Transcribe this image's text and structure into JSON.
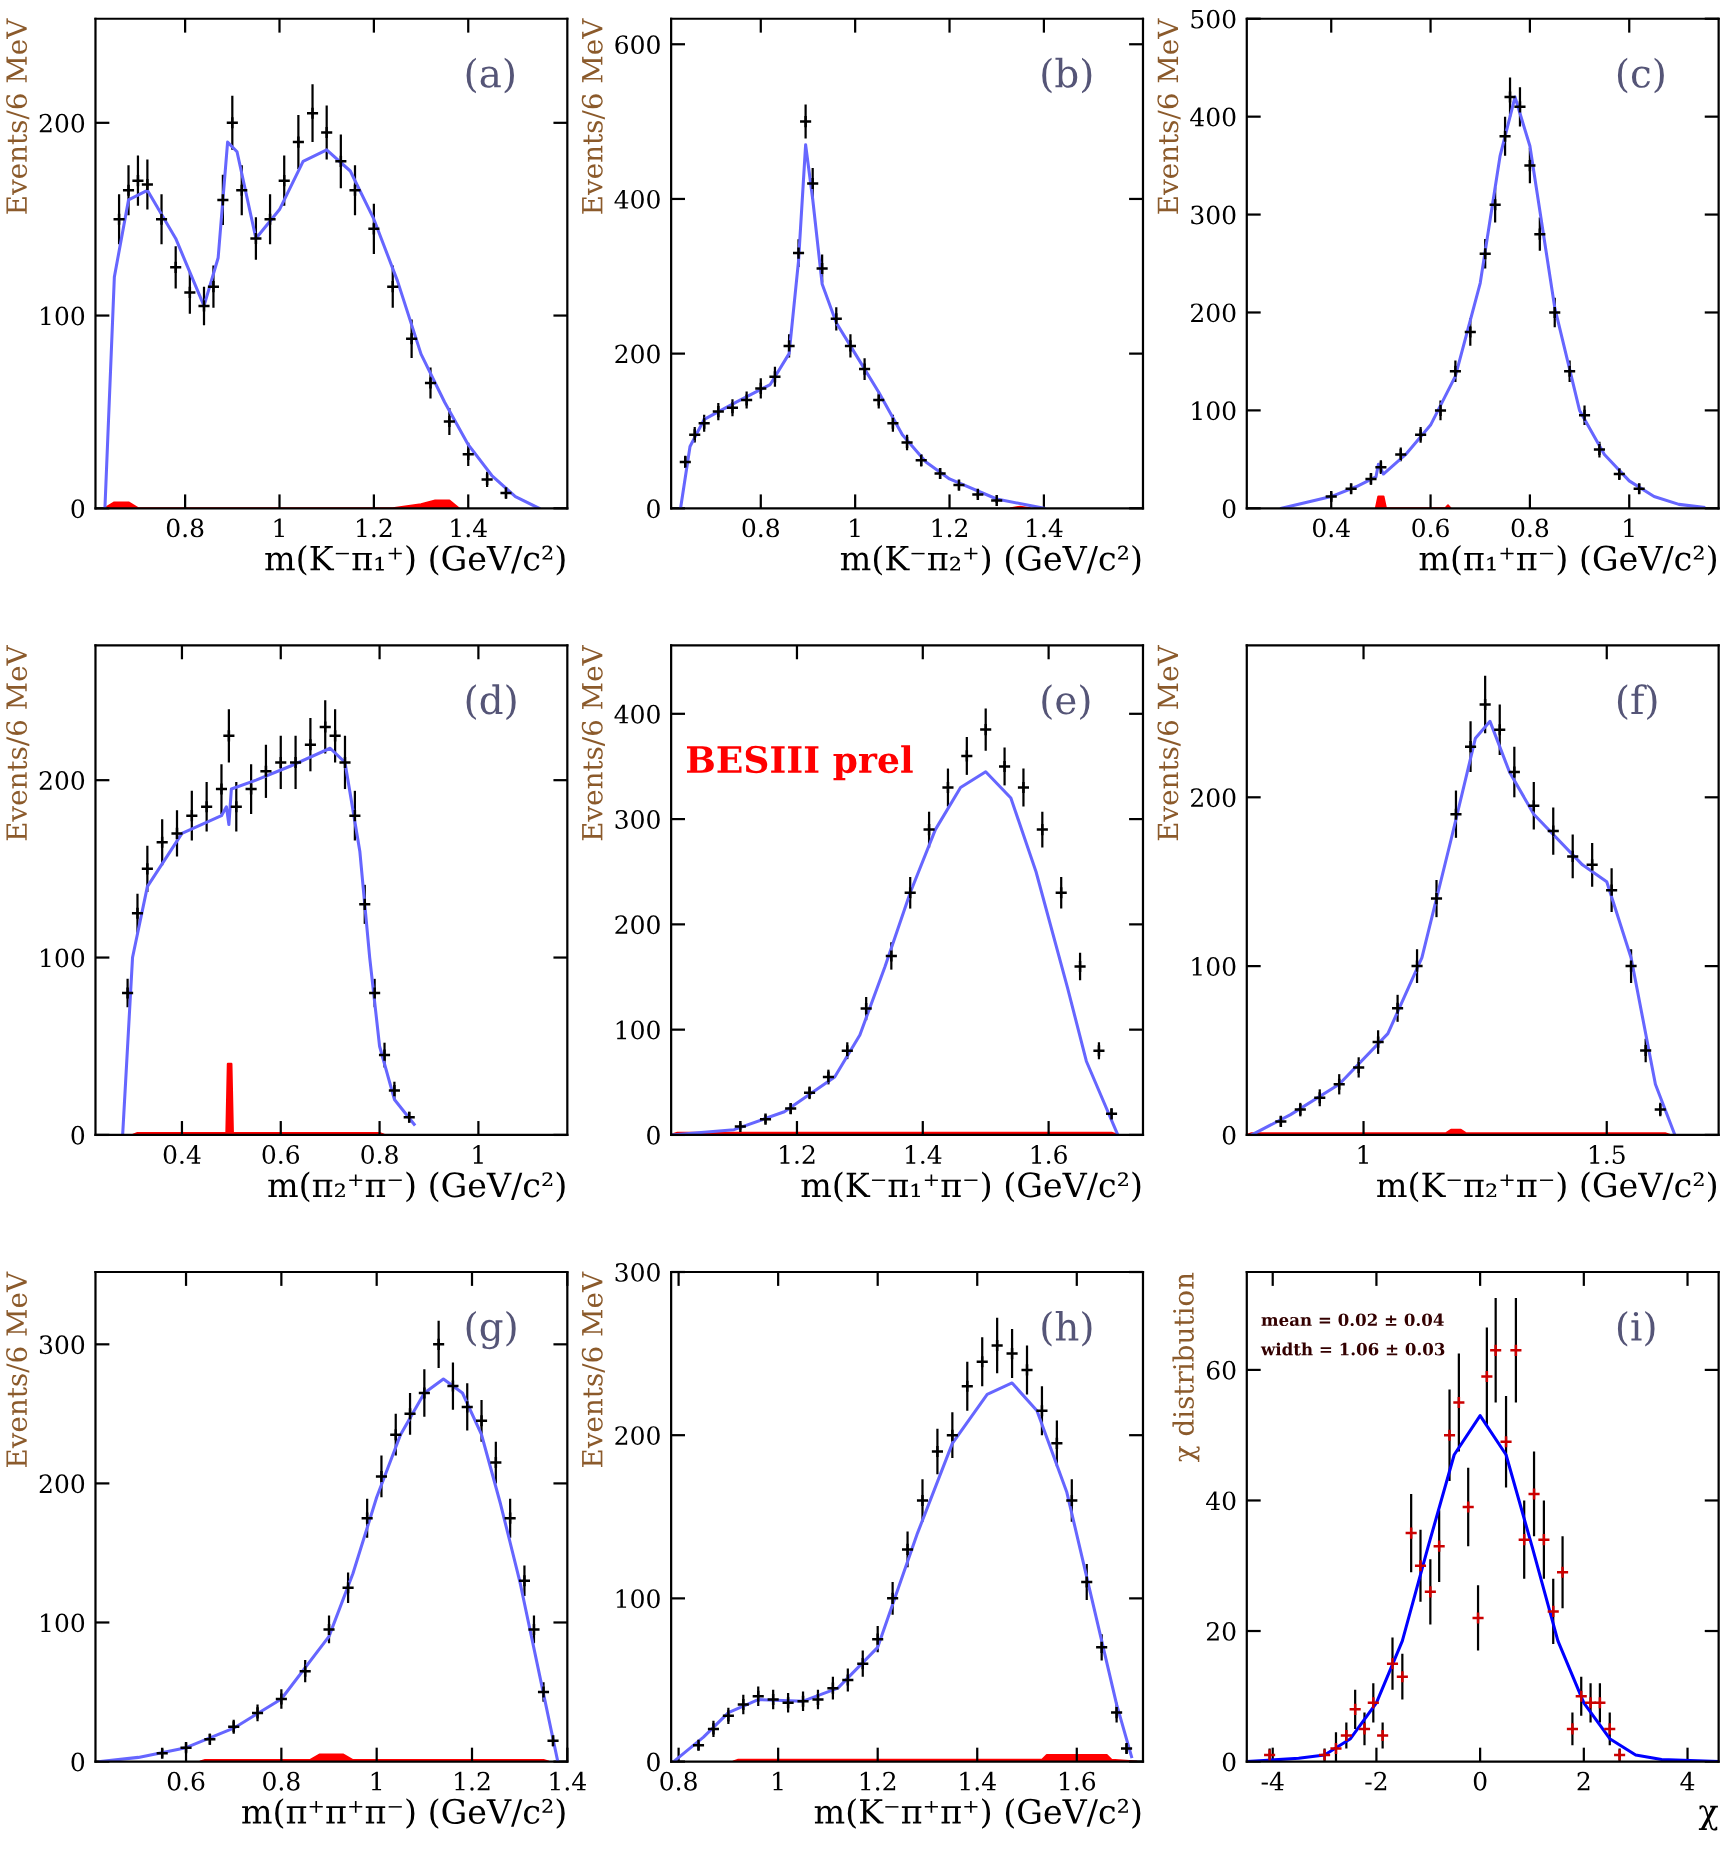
{
  "chart_data": [
    {
      "type": "scatter",
      "xlabel": "m(K⁻π₁⁺) (GeV/c²)",
      "ylabel": "Events/6 MeV",
      "xlim": [
        0.61,
        1.61
      ],
      "xticks": [
        0.8,
        1,
        1.2,
        1.4
      ],
      "ylim": [
        0,
        254
      ],
      "yticks": [
        0,
        100,
        200
      ],
      "annotations": [
        "(a)"
      ],
      "series": [
        {
          "type": "area",
          "color": "#ff0000",
          "x": [
            0.63,
            0.65,
            0.68,
            0.7,
            1.24,
            1.3,
            1.33,
            1.36,
            1.38
          ],
          "values": [
            0,
            3,
            3,
            0,
            0,
            2,
            4,
            4,
            0
          ]
        },
        {
          "color": "#000000",
          "marker": "cross",
          "x": [
            0.66,
            0.68,
            0.7,
            0.72,
            0.75,
            0.78,
            0.81,
            0.84,
            0.86,
            0.88,
            0.9,
            0.92,
            0.95,
            0.98,
            1.01,
            1.04,
            1.07,
            1.1,
            1.13,
            1.16,
            1.2,
            1.24,
            1.28,
            1.32,
            1.36,
            1.4,
            1.44,
            1.48
          ],
          "values": [
            150,
            165,
            170,
            168,
            150,
            125,
            112,
            105,
            115,
            160,
            200,
            165,
            140,
            150,
            170,
            190,
            205,
            195,
            180,
            165,
            145,
            115,
            88,
            65,
            45,
            28,
            15,
            8
          ],
          "errors": [
            13,
            13,
            13,
            13,
            13,
            11,
            11,
            10,
            11,
            13,
            14,
            13,
            11,
            13,
            13,
            14,
            15,
            14,
            14,
            13,
            13,
            11,
            10,
            8,
            7,
            6,
            4,
            3
          ]
        },
        {
          "type": "line",
          "color": "#6666ff",
          "x": [
            0.63,
            0.65,
            0.68,
            0.72,
            0.78,
            0.84,
            0.87,
            0.89,
            0.91,
            0.95,
            1.0,
            1.05,
            1.1,
            1.15,
            1.2,
            1.25,
            1.3,
            1.35,
            1.4,
            1.45,
            1.5,
            1.55
          ],
          "values": [
            0,
            120,
            160,
            165,
            140,
            105,
            130,
            190,
            185,
            140,
            155,
            180,
            186,
            175,
            150,
            118,
            80,
            55,
            33,
            17,
            6,
            0
          ]
        }
      ]
    },
    {
      "type": "scatter",
      "xlabel": "m(K⁻π₂⁺) (GeV/c²)",
      "ylabel": "Events/6 MeV",
      "xlim": [
        0.61,
        1.61
      ],
      "xticks": [
        0.8,
        1,
        1.2,
        1.4
      ],
      "ylim": [
        0,
        633
      ],
      "yticks": [
        0,
        200,
        400,
        600
      ],
      "annotations": [
        "(b)"
      ],
      "series": [
        {
          "type": "area",
          "color": "#ff0000",
          "x": [
            1.33,
            1.35,
            1.37
          ],
          "values": [
            0,
            2,
            0
          ]
        },
        {
          "color": "#000000",
          "marker": "cross",
          "x": [
            0.64,
            0.66,
            0.68,
            0.71,
            0.74,
            0.77,
            0.8,
            0.83,
            0.86,
            0.88,
            0.895,
            0.91,
            0.93,
            0.96,
            0.99,
            1.02,
            1.05,
            1.08,
            1.11,
            1.14,
            1.18,
            1.22,
            1.26,
            1.3
          ],
          "values": [
            60,
            95,
            110,
            125,
            130,
            140,
            155,
            170,
            210,
            330,
            500,
            420,
            310,
            245,
            210,
            180,
            140,
            110,
            85,
            62,
            45,
            30,
            18,
            10
          ],
          "errors": [
            8,
            10,
            11,
            11,
            11,
            11,
            13,
            13,
            15,
            18,
            22,
            20,
            18,
            15,
            15,
            14,
            11,
            11,
            10,
            8,
            7,
            6,
            4,
            3
          ]
        },
        {
          "type": "line",
          "color": "#6666ff",
          "x": [
            0.63,
            0.65,
            0.68,
            0.75,
            0.82,
            0.86,
            0.88,
            0.895,
            0.91,
            0.93,
            0.96,
            1.0,
            1.05,
            1.1,
            1.15,
            1.2,
            1.3,
            1.4
          ],
          "values": [
            0,
            80,
            115,
            138,
            160,
            200,
            320,
            470,
            400,
            290,
            240,
            200,
            150,
            95,
            60,
            38,
            12,
            0
          ]
        }
      ]
    },
    {
      "type": "scatter",
      "xlabel": "m(π₁⁺π⁻) (GeV/c²)",
      "ylabel": "Events/6 MeV",
      "xlim": [
        0.23,
        1.18
      ],
      "xticks": [
        0.4,
        0.6,
        0.8,
        1
      ],
      "ylim": [
        0,
        500
      ],
      "yticks": [
        0,
        100,
        200,
        300,
        400,
        500
      ],
      "annotations": [
        "(c)"
      ],
      "series": [
        {
          "type": "area",
          "color": "#ff0000",
          "x": [
            0.49,
            0.495,
            0.505,
            0.51,
            0.63,
            0.635,
            0.64
          ],
          "values": [
            0,
            12,
            12,
            0,
            0,
            3,
            0
          ]
        },
        {
          "color": "#000000",
          "marker": "cross",
          "x": [
            0.4,
            0.44,
            0.48,
            0.5,
            0.54,
            0.58,
            0.62,
            0.65,
            0.68,
            0.71,
            0.73,
            0.75,
            0.76,
            0.78,
            0.8,
            0.82,
            0.85,
            0.88,
            0.91,
            0.94,
            0.98,
            1.02
          ],
          "values": [
            12,
            20,
            30,
            42,
            55,
            75,
            100,
            140,
            180,
            260,
            310,
            380,
            420,
            410,
            350,
            280,
            200,
            140,
            95,
            60,
            35,
            20
          ],
          "errors": [
            4,
            5,
            6,
            7,
            7,
            8,
            10,
            11,
            14,
            15,
            18,
            20,
            20,
            20,
            18,
            17,
            15,
            11,
            10,
            8,
            6,
            5
          ]
        },
        {
          "type": "line",
          "color": "#6666ff",
          "x": [
            0.3,
            0.4,
            0.45,
            0.49,
            0.495,
            0.505,
            0.55,
            0.6,
            0.65,
            0.7,
            0.74,
            0.77,
            0.8,
            0.85,
            0.9,
            0.95,
            1.0,
            1.05,
            1.1,
            1.15
          ],
          "values": [
            0,
            12,
            22,
            32,
            45,
            35,
            55,
            85,
            135,
            230,
            360,
            420,
            370,
            205,
            100,
            55,
            28,
            12,
            4,
            1
          ]
        }
      ]
    },
    {
      "type": "scatter",
      "xlabel": "m(π₂⁺π⁻) (GeV/c²)",
      "ylabel": "Events/6 MeV",
      "xlim": [
        0.225,
        1.18
      ],
      "xticks": [
        0.4,
        0.6,
        0.8,
        1
      ],
      "ylim": [
        0,
        276
      ],
      "yticks": [
        0,
        100,
        200
      ],
      "annotations": [
        "(d)"
      ],
      "series": [
        {
          "type": "area",
          "color": "#ff0000",
          "x": [
            0.3,
            0.31,
            0.49,
            0.493,
            0.5,
            0.503,
            0.8,
            0.81
          ],
          "values": [
            0,
            1,
            1,
            40,
            40,
            1,
            1,
            0
          ]
        },
        {
          "color": "#000000",
          "marker": "cross",
          "x": [
            0.29,
            0.31,
            0.33,
            0.36,
            0.39,
            0.42,
            0.45,
            0.48,
            0.495,
            0.51,
            0.54,
            0.57,
            0.6,
            0.63,
            0.66,
            0.69,
            0.71,
            0.73,
            0.75,
            0.77,
            0.79,
            0.81,
            0.83,
            0.86
          ],
          "values": [
            80,
            125,
            150,
            165,
            170,
            180,
            185,
            195,
            225,
            185,
            195,
            205,
            210,
            210,
            220,
            230,
            225,
            210,
            180,
            130,
            80,
            45,
            25,
            10
          ],
          "errors": [
            8,
            11,
            13,
            13,
            13,
            14,
            14,
            14,
            15,
            14,
            14,
            15,
            15,
            15,
            15,
            15,
            15,
            15,
            14,
            11,
            8,
            7,
            5,
            3
          ]
        },
        {
          "type": "line",
          "color": "#6666ff",
          "x": [
            0.28,
            0.3,
            0.33,
            0.4,
            0.48,
            0.49,
            0.495,
            0.5,
            0.55,
            0.62,
            0.7,
            0.73,
            0.76,
            0.78,
            0.8,
            0.83,
            0.87
          ],
          "values": [
            0,
            100,
            140,
            170,
            180,
            185,
            175,
            195,
            200,
            208,
            218,
            210,
            160,
            100,
            50,
            20,
            6
          ]
        }
      ]
    },
    {
      "type": "scatter",
      "xlabel": "m(K⁻π₁⁺π⁻) (GeV/c²)",
      "ylabel": "Events/6 MeV",
      "xlim": [
        1.0,
        1.75
      ],
      "xticks": [
        1.2,
        1.4,
        1.6
      ],
      "ylim": [
        0,
        465
      ],
      "yticks": [
        0,
        100,
        200,
        300,
        400
      ],
      "annotations": [
        "(e)",
        "BESIII prel"
      ],
      "series": [
        {
          "type": "area",
          "color": "#ff0000",
          "x": [
            1.0,
            1.01,
            1.7,
            1.71
          ],
          "values": [
            0,
            2,
            2,
            0
          ]
        },
        {
          "color": "#000000",
          "marker": "cross",
          "x": [
            1.11,
            1.15,
            1.19,
            1.22,
            1.25,
            1.28,
            1.31,
            1.35,
            1.38,
            1.41,
            1.44,
            1.47,
            1.5,
            1.53,
            1.56,
            1.59,
            1.62,
            1.65,
            1.68,
            1.7
          ],
          "values": [
            8,
            15,
            25,
            40,
            55,
            80,
            120,
            170,
            230,
            290,
            330,
            360,
            385,
            350,
            330,
            290,
            230,
            160,
            80,
            20
          ],
          "errors": [
            3,
            4,
            5,
            6,
            7,
            8,
            11,
            13,
            15,
            17,
            18,
            18,
            20,
            18,
            18,
            17,
            15,
            13,
            8,
            5
          ]
        },
        {
          "type": "line",
          "color": "#6666ff",
          "x": [
            1.0,
            1.1,
            1.18,
            1.26,
            1.3,
            1.34,
            1.38,
            1.42,
            1.46,
            1.5,
            1.54,
            1.58,
            1.63,
            1.66,
            1.71
          ],
          "values": [
            0,
            5,
            22,
            55,
            95,
            160,
            230,
            290,
            330,
            345,
            320,
            250,
            140,
            70,
            0
          ]
        }
      ]
    },
    {
      "type": "scatter",
      "xlabel": "m(K⁻π₂⁺π⁻) (GeV/c²)",
      "ylabel": "Events/6 MeV",
      "xlim": [
        0.76,
        1.73
      ],
      "xticks": [
        1,
        1.5
      ],
      "ylim": [
        0,
        290
      ],
      "yticks": [
        0,
        100,
        200
      ],
      "annotations": [
        "(f)"
      ],
      "series": [
        {
          "type": "area",
          "color": "#ff0000",
          "x": [
            0.76,
            0.77,
            1.17,
            1.18,
            1.2,
            1.21,
            1.62,
            1.63
          ],
          "values": [
            0,
            1,
            1,
            3,
            3,
            1,
            1,
            0
          ]
        },
        {
          "color": "#000000",
          "marker": "cross",
          "x": [
            0.83,
            0.87,
            0.91,
            0.95,
            0.99,
            1.03,
            1.07,
            1.11,
            1.15,
            1.19,
            1.22,
            1.25,
            1.28,
            1.31,
            1.35,
            1.39,
            1.43,
            1.47,
            1.51,
            1.55,
            1.58,
            1.61
          ],
          "values": [
            8,
            15,
            22,
            30,
            40,
            55,
            75,
            100,
            140,
            190,
            230,
            255,
            240,
            215,
            195,
            180,
            165,
            160,
            145,
            100,
            50,
            15
          ],
          "errors": [
            3,
            4,
            5,
            6,
            6,
            7,
            8,
            10,
            11,
            14,
            15,
            17,
            15,
            15,
            14,
            14,
            13,
            13,
            13,
            10,
            7,
            4
          ]
        },
        {
          "type": "line",
          "color": "#6666ff",
          "x": [
            0.77,
            0.85,
            0.95,
            1.05,
            1.12,
            1.18,
            1.23,
            1.26,
            1.3,
            1.35,
            1.45,
            1.5,
            1.55,
            1.6,
            1.64
          ],
          "values": [
            0,
            12,
            30,
            60,
            105,
            175,
            235,
            245,
            215,
            190,
            160,
            150,
            105,
            30,
            0
          ]
        }
      ]
    },
    {
      "type": "scatter",
      "xlabel": "m(π⁺π⁺π⁻) (GeV/c²)",
      "ylabel": "Events/6 MeV",
      "xlim": [
        0.41,
        1.4
      ],
      "xticks": [
        0.6,
        0.8,
        1,
        1.2,
        1.4
      ],
      "ylim": [
        0,
        352
      ],
      "yticks": [
        0,
        100,
        200,
        300
      ],
      "annotations": [
        "(g)"
      ],
      "series": [
        {
          "type": "area",
          "color": "#ff0000",
          "x": [
            0.63,
            0.64,
            0.86,
            0.88,
            0.93,
            0.95,
            1.35,
            1.36
          ],
          "values": [
            0,
            1,
            1,
            5,
            5,
            1,
            1,
            0
          ]
        },
        {
          "color": "#000000",
          "marker": "cross",
          "x": [
            0.55,
            0.6,
            0.65,
            0.7,
            0.75,
            0.8,
            0.85,
            0.9,
            0.94,
            0.98,
            1.01,
            1.04,
            1.07,
            1.1,
            1.13,
            1.16,
            1.19,
            1.22,
            1.25,
            1.28,
            1.31,
            1.33,
            1.35,
            1.37
          ],
          "values": [
            6,
            10,
            16,
            25,
            35,
            45,
            65,
            95,
            125,
            175,
            205,
            235,
            250,
            265,
            300,
            270,
            255,
            245,
            215,
            175,
            130,
            95,
            50,
            15
          ],
          "errors": [
            3,
            3,
            4,
            5,
            6,
            7,
            8,
            10,
            11,
            14,
            15,
            15,
            15,
            17,
            17,
            17,
            17,
            15,
            15,
            14,
            11,
            10,
            7,
            4
          ]
        },
        {
          "type": "line",
          "color": "#6666ff",
          "x": [
            0.42,
            0.5,
            0.6,
            0.7,
            0.8,
            0.9,
            0.95,
            1.0,
            1.05,
            1.1,
            1.14,
            1.18,
            1.22,
            1.26,
            1.3,
            1.34,
            1.38
          ],
          "values": [
            0,
            3,
            10,
            24,
            45,
            90,
            135,
            190,
            235,
            265,
            275,
            265,
            235,
            185,
            130,
            65,
            0
          ]
        }
      ]
    },
    {
      "type": "scatter",
      "xlabel": "m(K⁻π⁺π⁺) (GeV/c²)",
      "ylabel": "Events/6 MeV",
      "xlim": [
        0.785,
        1.733
      ],
      "xticks": [
        0.8,
        1,
        1.2,
        1.4,
        1.6
      ],
      "ylim": [
        0,
        300
      ],
      "yticks": [
        0,
        100,
        200,
        300
      ],
      "annotations": [
        "(h)"
      ],
      "series": [
        {
          "type": "area",
          "color": "#ff0000",
          "x": [
            0.91,
            0.92,
            1.53,
            1.54,
            1.66,
            1.67,
            1.72
          ],
          "values": [
            0,
            1,
            1,
            4,
            4,
            1,
            0
          ]
        },
        {
          "color": "#000000",
          "marker": "cross",
          "x": [
            0.84,
            0.87,
            0.9,
            0.93,
            0.96,
            0.99,
            1.02,
            1.05,
            1.08,
            1.11,
            1.14,
            1.17,
            1.2,
            1.23,
            1.26,
            1.29,
            1.32,
            1.35,
            1.38,
            1.41,
            1.44,
            1.47,
            1.5,
            1.53,
            1.56,
            1.59,
            1.62,
            1.65,
            1.68,
            1.7
          ],
          "values": [
            10,
            20,
            28,
            35,
            40,
            38,
            36,
            37,
            38,
            45,
            50,
            60,
            75,
            100,
            130,
            160,
            190,
            200,
            230,
            245,
            255,
            250,
            240,
            215,
            195,
            160,
            110,
            70,
            30,
            8
          ],
          "errors": [
            3,
            5,
            5,
            6,
            6,
            6,
            6,
            6,
            6,
            7,
            7,
            8,
            8,
            10,
            11,
            13,
            14,
            14,
            15,
            15,
            17,
            15,
            15,
            15,
            14,
            13,
            11,
            8,
            6,
            3
          ]
        },
        {
          "type": "line",
          "color": "#6666ff",
          "x": [
            0.79,
            0.85,
            0.9,
            0.96,
            1.05,
            1.12,
            1.2,
            1.28,
            1.35,
            1.42,
            1.47,
            1.52,
            1.58,
            1.63,
            1.68,
            1.71
          ],
          "values": [
            0,
            15,
            30,
            38,
            37,
            45,
            70,
            140,
            195,
            225,
            232,
            215,
            165,
            100,
            35,
            3
          ]
        }
      ]
    },
    {
      "type": "scatter",
      "xlabel": "χ",
      "ylabel": "χ distribution",
      "xlim": [
        -4.5,
        4.6
      ],
      "xticks": [
        -4,
        -2,
        0,
        2,
        4
      ],
      "ylim": [
        0,
        75
      ],
      "yticks": [
        0,
        20,
        40,
        60
      ],
      "annotations": [
        "(i)",
        "mean = 0.02 ± 0.04",
        "width = 1.06 ± 0.03"
      ],
      "series": [
        {
          "color": "#cc0000",
          "marker": "cross",
          "x": [
            -4.06,
            -3.0,
            -2.78,
            -2.58,
            -2.41,
            -2.23,
            -2.06,
            -1.88,
            -1.69,
            -1.5,
            -1.33,
            -1.15,
            -0.96,
            -0.79,
            -0.59,
            -0.41,
            -0.23,
            -0.04,
            0.13,
            0.3,
            0.5,
            0.69,
            0.85,
            1.04,
            1.23,
            1.41,
            1.59,
            1.78,
            1.95,
            2.13,
            2.31,
            2.5,
            2.69
          ],
          "values": [
            1,
            1,
            2,
            4,
            8,
            5,
            9,
            4,
            15,
            13,
            35,
            30,
            26,
            33,
            50,
            55,
            39,
            22,
            59,
            63,
            49,
            63,
            34,
            41,
            34,
            23,
            29,
            5,
            10,
            9,
            9,
            5,
            1
          ],
          "errors": [
            1,
            1,
            2.5,
            2,
            3,
            2.5,
            3,
            2,
            4,
            3.5,
            6,
            5.5,
            5,
            5.5,
            7,
            7.5,
            6,
            5,
            7.5,
            8,
            7,
            8,
            6,
            6.5,
            6,
            5,
            5.5,
            2.5,
            3,
            3,
            3,
            2.5,
            1
          ]
        },
        {
          "type": "line",
          "color": "#0000ff",
          "x": [
            -4.5,
            -3.5,
            -3,
            -2.5,
            -2,
            -1.5,
            -1,
            -0.5,
            0,
            0.5,
            1,
            1.5,
            2,
            2.5,
            3,
            3.5,
            4.6
          ],
          "values": [
            0,
            0.5,
            1,
            3.5,
            9,
            18.5,
            33,
            47,
            53,
            47,
            33,
            18.5,
            9,
            3.5,
            1,
            0.3,
            0
          ]
        }
      ]
    }
  ]
}
